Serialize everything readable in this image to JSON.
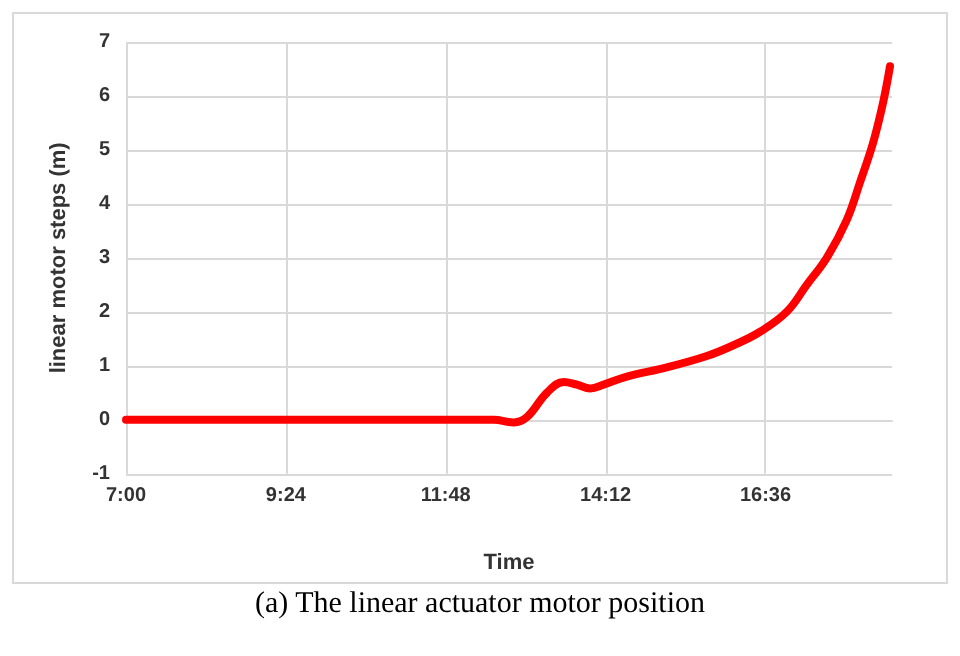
{
  "chart_data": {
    "type": "line",
    "xlabel": "Time",
    "ylabel": "linear motor steps (m)",
    "annotations": [
      "(a) The linear actuator motor position"
    ],
    "x": [
      7,
      9,
      11,
      12.52,
      12.82,
      13.02,
      13.32,
      13.57,
      13.77,
      13.97,
      14.17,
      14.52,
      15.12,
      15.72,
      16.12,
      16.52,
      16.92,
      17.22,
      17.52,
      17.82,
      18.02,
      18.22,
      18.37,
      18.47
    ],
    "series": [
      {
        "color": "#ff0000",
        "values": [
          0,
          0,
          0,
          0,
          -0.05,
          0.05,
          0.5,
          0.7,
          0.65,
          0.58,
          0.65,
          0.8,
          0.97,
          1.18,
          1.38,
          1.63,
          2.0,
          2.5,
          3.0,
          3.7,
          4.4,
          5.15,
          5.9,
          6.55
        ]
      }
    ],
    "xlim": [
      7,
      18.5
    ],
    "xticks": [
      {
        "value": 7,
        "label": "7:00"
      },
      {
        "value": 9.4,
        "label": "9:24"
      },
      {
        "value": 11.8,
        "label": "11:48"
      },
      {
        "value": 14.2,
        "label": "14:12"
      },
      {
        "value": 16.6,
        "label": "16:36"
      }
    ],
    "ylim": [
      -1,
      7
    ],
    "yticks": [
      -1,
      0,
      1,
      2,
      3,
      4,
      5,
      6,
      7
    ],
    "grid": true,
    "marker": "none",
    "line_style": "solid"
  }
}
